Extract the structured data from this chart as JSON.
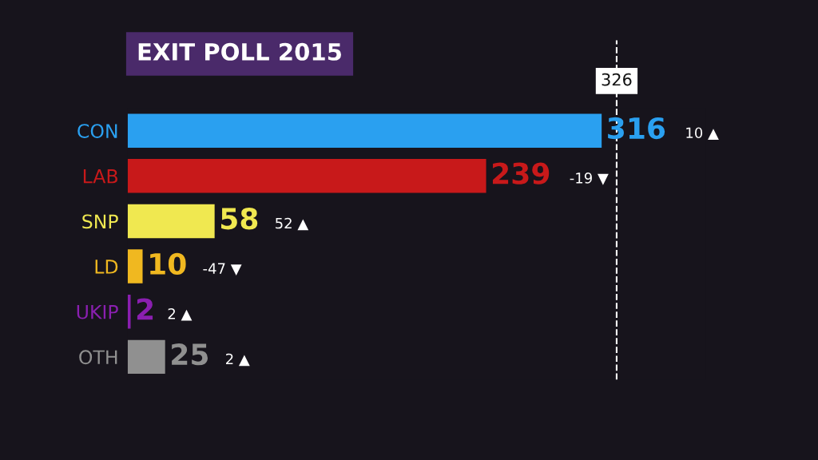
{
  "chart_data": {
    "type": "bar",
    "orientation": "horizontal",
    "title": "EXIT POLL 2015",
    "categories": [
      "CON",
      "LAB",
      "SNP",
      "LD",
      "UKIP",
      "OTH"
    ],
    "values": [
      316,
      239,
      58,
      10,
      2,
      25
    ],
    "colors": [
      "#2aa0f0",
      "#c8191a",
      "#f0e850",
      "#f0b820",
      "#8a1fb0",
      "#909090"
    ],
    "data_labels": true,
    "tick_labels": "y",
    "grid": false,
    "legend": false,
    "ref_lines": [
      {
        "axis": "x",
        "value": 326,
        "label": "326",
        "color": "#ffffff",
        "line_style": "dashed"
      }
    ],
    "annotations": [
      "10 ▲",
      "-19 ▼",
      "52 ▲",
      "-47 ▼",
      "2 ▲",
      "2 ▲"
    ]
  }
}
